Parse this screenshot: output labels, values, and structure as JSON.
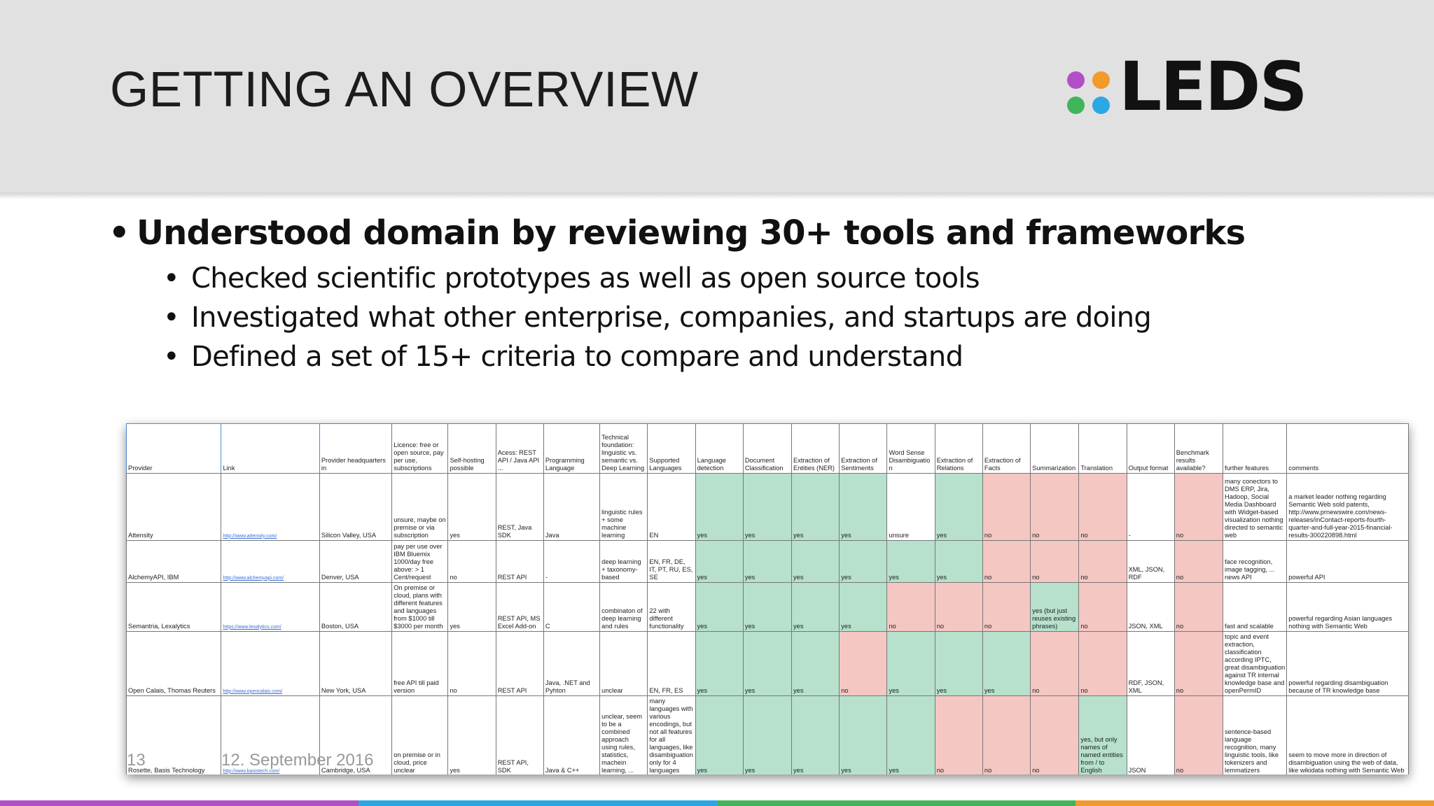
{
  "slide": {
    "title": "GETTING AN OVERVIEW",
    "logo_text": "LEDS",
    "logo_dot_colors": [
      "#b04fc6",
      "#f39a2b",
      "#41b55a",
      "#2aa8e6"
    ],
    "bullet_main": "Understood domain by reviewing 30+ tools and frameworks",
    "bullets_sub": [
      "Checked scientific prototypes as well as open source tools",
      "Investigated what other enterprise, companies, and startups are doing",
      "Defined a set of 15+ criteria to compare and understand"
    ],
    "bullet_glyph": "•",
    "page_number": "13",
    "date": "12. September 2016",
    "bottom_bar_colors": [
      "#b04fc6",
      "#2aa8e6",
      "#41b55a",
      "#f39a2b"
    ]
  },
  "table": {
    "headers": [
      "Provider",
      "Link",
      "Provider headquarters in",
      "Licence: free or open source, pay per use, subscriptions",
      "Self-hosting possible",
      "Acess: REST API / Java API ...",
      "Programming Language",
      "Technical foundation: linguistic vs. semantic vs. Deep Learning",
      "Supported Languages",
      "Language detection",
      "Document Classification",
      "Extraction of Entities (NER)",
      "Extraction of Sentiments",
      "Word Sense Disambiguation",
      "Extraction of Relations",
      "Extraction of Facts",
      "Summarization",
      "Translation",
      "Output format",
      "Benchmark results available?",
      "further features",
      "comments"
    ],
    "rows": [
      {
        "cells": [
          "Attensity",
          "http://www.attensity.com/",
          "Silicon Valley, USA",
          "unsure, maybe on premise or via subscription",
          "yes",
          "REST, Java SDK",
          "Java",
          "linguistic rules + some machine learning",
          "EN",
          "yes",
          "yes",
          "yes",
          "yes",
          "unsure",
          "yes",
          "no",
          "no",
          "no",
          "-",
          "no",
          "many conectors to DMS ERP, Jira, Hadoop, Social Media Dashboard with Widget-based visualization nothing directed to semantic web",
          "a market leader nothing regarding Semantic Web sold patents, http://www.prnewswire.com/news-releases/inContact-reports-fourth-quarter-and-full-year-2015-financial-results-300220898.html"
        ],
        "colors": [
          "",
          "",
          "",
          "",
          "",
          "",
          "",
          "",
          "",
          "g",
          "g",
          "g",
          "g",
          "",
          "g",
          "r",
          "r",
          "r",
          "",
          "r",
          "",
          ""
        ]
      },
      {
        "cells": [
          "AlchemyAPI, IBM",
          "http://www.alchemyapi.com/",
          "Denver, USA",
          "pay per use over IBM Bluemix 1000/day free above: > 1 Cent/request",
          "no",
          "REST API",
          "-",
          "deep learning + taxonomy-based",
          "EN, FR, DE, IT, PT, RU, ES, SE",
          "yes",
          "yes",
          "yes",
          "yes",
          "yes",
          "yes",
          "no",
          "no",
          "no",
          "XML, JSON, RDF",
          "no",
          "face recognition, image tagging, ... news API",
          "powerful API"
        ],
        "colors": [
          "",
          "",
          "",
          "",
          "",
          "",
          "",
          "",
          "",
          "g",
          "g",
          "g",
          "g",
          "g",
          "g",
          "r",
          "r",
          "r",
          "",
          "r",
          "",
          ""
        ]
      },
      {
        "cells": [
          "Semantria, Lexalytics",
          "https://www.lexalytics.com/",
          "Boston, USA",
          "On premise or cloud, plans with different features and languages from $1000 till $3000 per month",
          "yes",
          "REST API, MS Excel Add-on",
          "C",
          "combinaton of deep learning and rules",
          "22 with different functionality",
          "yes",
          "yes",
          "yes",
          "yes",
          "no",
          "no",
          "no",
          "yes (but just reuses existing phrases)",
          "no",
          "JSON, XML",
          "no",
          "fast and scalable",
          "powerful regarding Asian languages nothing with Semantic Web"
        ],
        "colors": [
          "",
          "",
          "",
          "",
          "",
          "",
          "",
          "",
          "",
          "g",
          "g",
          "g",
          "g",
          "r",
          "r",
          "r",
          "g",
          "r",
          "",
          "r",
          "",
          ""
        ]
      },
      {
        "cells": [
          "Open Calais, Thomas Reuters",
          "http://www.opencalais.com/",
          "New York, USA",
          "free API till paid version",
          "no",
          "REST API",
          "Java, .NET and Pyhton",
          "unclear",
          "EN, FR, ES",
          "yes",
          "yes",
          "yes",
          "no",
          "yes",
          "yes",
          "yes",
          "no",
          "no",
          "RDF, JSON, XML",
          "no",
          "topic and event extraction, classification according IPTC, great disambiguation against TR internal knowledge base and openPermID",
          "powerful regarding disambiguation because of TR knowledge base"
        ],
        "colors": [
          "",
          "",
          "",
          "",
          "",
          "",
          "",
          "",
          "",
          "g",
          "g",
          "g",
          "r",
          "g",
          "g",
          "g",
          "r",
          "r",
          "",
          "r",
          "",
          ""
        ]
      },
      {
        "cells": [
          "Rosette, Basis Technology",
          "http://www.basistech.com/",
          "Cambridge, USA",
          "on premise or in cloud, price unclear",
          "yes",
          "REST API, SDK",
          "Java & C++",
          "unclear, seem to be a combined approach using rules, statistics, machein learning, ...",
          "many languages with various encodings, but not all features for all languages, like disambiguation only for 4 languages",
          "yes",
          "yes",
          "yes",
          "yes",
          "yes",
          "no",
          "no",
          "no",
          "yes, but only names of named entities from / to English",
          "JSON",
          "no",
          "sentence-based language recognition, many linguistic tools, like tokenizers and lemmatizers",
          "seem to move more in direction of disambiguation using the web of data, like wikidata nothing with Semantic Web"
        ],
        "colors": [
          "",
          "",
          "",
          "",
          "",
          "",
          "",
          "",
          "",
          "g",
          "g",
          "g",
          "g",
          "g",
          "r",
          "r",
          "r",
          "g",
          "",
          "r",
          "",
          ""
        ]
      }
    ]
  }
}
